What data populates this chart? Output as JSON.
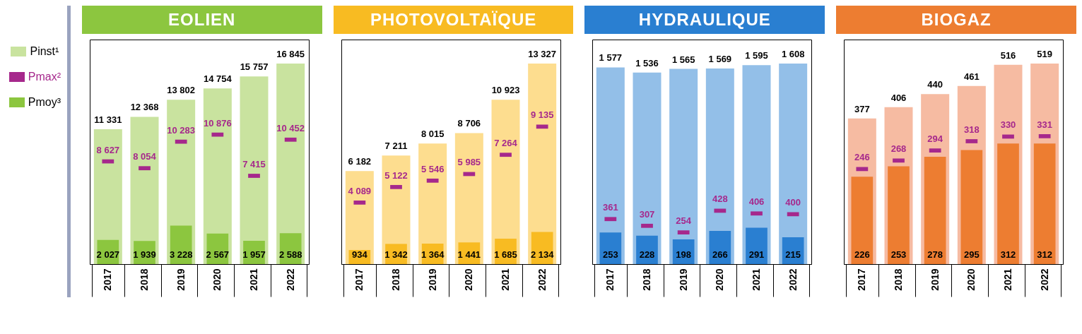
{
  "chart_data": [
    {
      "type": "bar",
      "title": "EOLIEN",
      "categories": [
        "2017",
        "2018",
        "2019",
        "2020",
        "2021",
        "2022"
      ],
      "legend": "left",
      "series": [
        {
          "name": "Pinst¹",
          "type": "bar",
          "color": "#c9e39f",
          "values": [
            11331,
            12368,
            13802,
            14754,
            15757,
            16845
          ],
          "value_labels": [
            "11 331",
            "12 368",
            "13 802",
            "14 754",
            "15 757",
            "16 845"
          ]
        },
        {
          "name": "Pmax²",
          "type": "scatter",
          "color": "#a6288c",
          "values": [
            8627,
            8054,
            10283,
            10876,
            7415,
            10452
          ],
          "value_labels": [
            "8 627",
            "8 054",
            "10 283",
            "10 876",
            "7 415",
            "10 452"
          ]
        },
        {
          "name": "Pmoy³",
          "type": "bar",
          "color": "#8cc63f",
          "values": [
            2027,
            1939,
            3228,
            2567,
            1957,
            2588
          ],
          "value_labels": [
            "2 027",
            "1 939",
            "3 228",
            "2 567",
            "1 957",
            "2 588"
          ]
        }
      ],
      "marker": "square"
    },
    {
      "type": "bar",
      "title": "PHOTOVOLTAÏQUE",
      "categories": [
        "2017",
        "2018",
        "2019",
        "2020",
        "2021",
        "2022"
      ],
      "series": [
        {
          "type": "bar",
          "color": "#fddd8f",
          "values": [
            6182,
            7211,
            8015,
            8706,
            10923,
            13327
          ],
          "value_labels": [
            "6 182",
            "7 211",
            "8 015",
            "8 706",
            "10 923",
            "13 327"
          ]
        },
        {
          "type": "scatter",
          "color": "#a6288c",
          "values": [
            4089,
            5122,
            5546,
            5985,
            7264,
            9135
          ],
          "value_labels": [
            "4 089",
            "5 122",
            "5 546",
            "5 985",
            "7 264",
            "9 135"
          ]
        },
        {
          "type": "bar",
          "color": "#f8bb22",
          "values": [
            934,
            1342,
            1364,
            1441,
            1685,
            2134
          ],
          "value_labels": [
            "934",
            "1 342",
            "1 364",
            "1 441",
            "1 685",
            "2 134"
          ]
        }
      ],
      "marker": "square"
    },
    {
      "type": "bar",
      "title": "HYDRAULIQUE",
      "categories": [
        "2017",
        "2018",
        "2019",
        "2020",
        "2021",
        "2022"
      ],
      "series": [
        {
          "type": "bar",
          "color": "#93bfe8",
          "values": [
            1577,
            1536,
            1565,
            1569,
            1595,
            1608
          ],
          "value_labels": [
            "1 577",
            "1 536",
            "1 565",
            "1 569",
            "1 595",
            "1 608"
          ]
        },
        {
          "type": "scatter",
          "color": "#a6288c",
          "values": [
            361,
            307,
            254,
            428,
            406,
            400
          ],
          "value_labels": [
            "361",
            "307",
            "254",
            "428",
            "406",
            "400"
          ]
        },
        {
          "type": "bar",
          "color": "#2a7fd1",
          "values": [
            253,
            228,
            198,
            266,
            291,
            215
          ],
          "value_labels": [
            "253",
            "228",
            "198",
            "266",
            "291",
            "215"
          ]
        }
      ],
      "marker": "square"
    },
    {
      "type": "bar",
      "title": "BIOGAZ",
      "categories": [
        "2017",
        "2018",
        "2019",
        "2020",
        "2021",
        "2022"
      ],
      "series": [
        {
          "type": "bar",
          "color": "#f6bba2",
          "values": [
            377,
            406,
            440,
            461,
            516,
            519
          ],
          "value_labels": [
            "377",
            "406",
            "440",
            "461",
            "516",
            "519"
          ]
        },
        {
          "type": "scatter",
          "color": "#a6288c",
          "values": [
            246,
            268,
            294,
            318,
            330,
            331
          ],
          "value_labels": [
            "246",
            "268",
            "294",
            "318",
            "330",
            "331"
          ]
        },
        {
          "type": "bar",
          "color": "#ed7d31",
          "values": [
            226,
            253,
            278,
            295,
            312,
            312
          ],
          "value_labels": [
            "226",
            "253",
            "278",
            "295",
            "312",
            "312"
          ]
        }
      ],
      "marker": "square"
    }
  ]
}
